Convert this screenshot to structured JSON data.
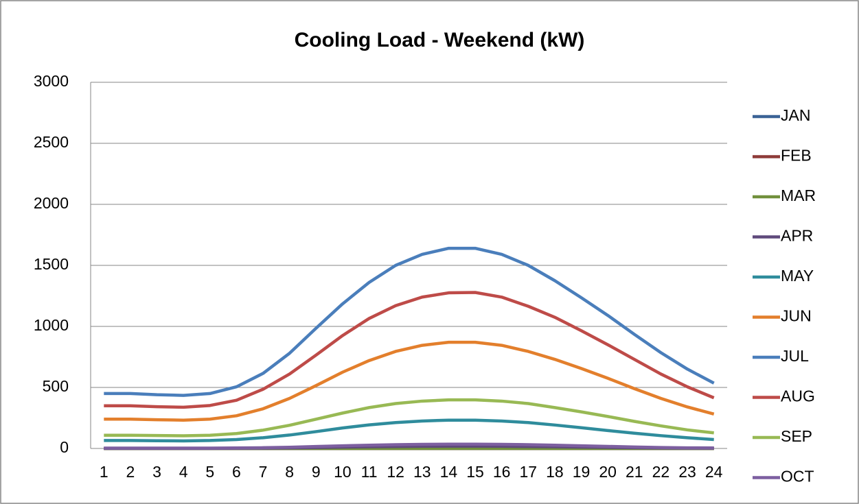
{
  "chart_data": {
    "type": "line",
    "title": "Cooling Load - Weekend (kW)",
    "categories": [
      "1",
      "2",
      "3",
      "4",
      "5",
      "6",
      "7",
      "8",
      "9",
      "10",
      "11",
      "12",
      "13",
      "14",
      "15",
      "16",
      "17",
      "18",
      "19",
      "20",
      "21",
      "22",
      "23",
      "24"
    ],
    "ylim": [
      0,
      3000
    ],
    "yticks": [
      0,
      500,
      1000,
      1500,
      2000,
      2500,
      3000
    ],
    "grid": true,
    "legend": "right",
    "series": [
      {
        "name": "JAN",
        "color": "#3b6396",
        "values": [
          0,
          0,
          0,
          0,
          0,
          0,
          0,
          0,
          0,
          0,
          0,
          0,
          0,
          0,
          0,
          0,
          0,
          0,
          0,
          0,
          0,
          0,
          0,
          0
        ]
      },
      {
        "name": "FEB",
        "color": "#8e3b39",
        "values": [
          0,
          0,
          0,
          0,
          0,
          0,
          0,
          0,
          0,
          0,
          0,
          0,
          0,
          0,
          0,
          0,
          0,
          0,
          0,
          0,
          0,
          0,
          0,
          0
        ]
      },
      {
        "name": "MAR",
        "color": "#71903c",
        "values": [
          0,
          0,
          0,
          0,
          0,
          0,
          0,
          0,
          0,
          0,
          0,
          0,
          0,
          0,
          0,
          0,
          0,
          0,
          0,
          0,
          0,
          0,
          0,
          0
        ]
      },
      {
        "name": "APR",
        "color": "#5f4a7c",
        "values": [
          1,
          1,
          1,
          1,
          1,
          2,
          3,
          5,
          8,
          11,
          14,
          16,
          18,
          19,
          19,
          18,
          16,
          14,
          11,
          9,
          6,
          4,
          3,
          2
        ]
      },
      {
        "name": "MAY",
        "color": "#2f8c9c",
        "values": [
          65,
          65,
          63,
          62,
          65,
          73,
          88,
          110,
          138,
          168,
          193,
          212,
          225,
          232,
          232,
          225,
          212,
          192,
          170,
          147,
          125,
          105,
          88,
          73
        ]
      },
      {
        "name": "JUN",
        "color": "#e37f2c",
        "values": [
          240,
          240,
          235,
          232,
          240,
          268,
          325,
          410,
          515,
          625,
          720,
          795,
          845,
          870,
          870,
          845,
          795,
          730,
          655,
          575,
          490,
          410,
          340,
          282
        ]
      },
      {
        "name": "JUL",
        "color": "#4a7ebb",
        "values": [
          450,
          450,
          440,
          435,
          450,
          505,
          615,
          780,
          985,
          1185,
          1360,
          1500,
          1590,
          1640,
          1640,
          1590,
          1500,
          1375,
          1235,
          1090,
          935,
          785,
          650,
          535
        ]
      },
      {
        "name": "AUG",
        "color": "#be4b48",
        "values": [
          350,
          350,
          342,
          338,
          352,
          395,
          485,
          610,
          765,
          925,
          1065,
          1170,
          1240,
          1275,
          1278,
          1240,
          1165,
          1075,
          965,
          850,
          730,
          610,
          505,
          415
        ]
      },
      {
        "name": "SEP",
        "color": "#98b954",
        "values": [
          108,
          108,
          106,
          104,
          108,
          122,
          150,
          190,
          240,
          290,
          335,
          368,
          388,
          398,
          398,
          388,
          368,
          335,
          300,
          262,
          222,
          185,
          152,
          128
        ]
      },
      {
        "name": "OCT",
        "color": "#7d5fa0",
        "values": [
          3,
          3,
          3,
          3,
          3,
          4,
          6,
          10,
          16,
          22,
          27,
          31,
          34,
          35,
          35,
          34,
          31,
          27,
          22,
          17,
          12,
          8,
          5,
          4
        ]
      }
    ]
  }
}
